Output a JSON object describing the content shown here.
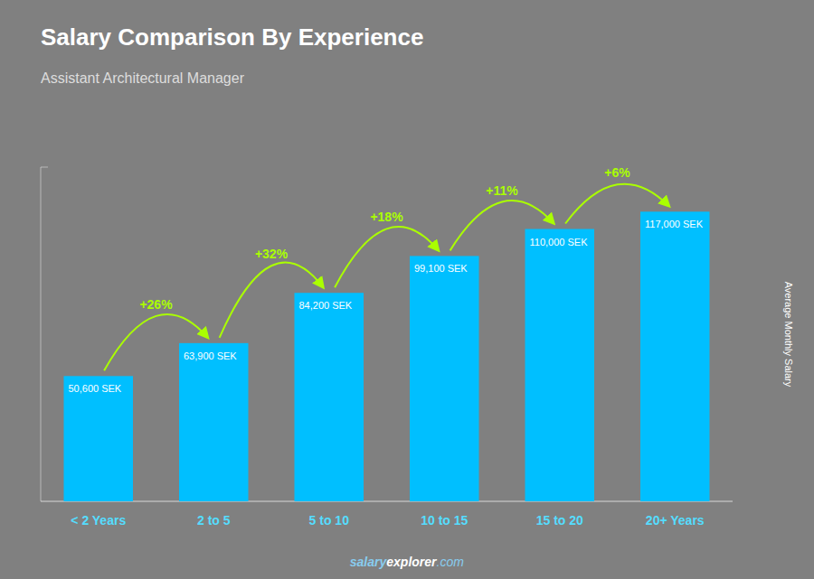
{
  "chart_data": {
    "type": "bar",
    "title": "Salary Comparison By Experience",
    "subtitle": "Assistant Architectural Manager",
    "ylabel": "Average Monthly Salary",
    "categories": [
      "< 2 Years",
      "2 to 5",
      "5 to 10",
      "10 to 15",
      "15 to 20",
      "20+ Years"
    ],
    "values": [
      50600,
      63900,
      84200,
      99100,
      110000,
      117000
    ],
    "value_labels": [
      "50,600 SEK",
      "63,900 SEK",
      "84,200 SEK",
      "99,100 SEK",
      "110,000 SEK",
      "117,000 SEK"
    ],
    "data_labels": true,
    "annotations": [
      "+26%",
      "+32%",
      "+18%",
      "+11%",
      "+6%"
    ],
    "watermark": [
      "salary",
      "explorer",
      ".com"
    ],
    "color": "#00bfff",
    "ylim": [
      0,
      135000
    ],
    "grid": false,
    "tick_labels": "x"
  }
}
